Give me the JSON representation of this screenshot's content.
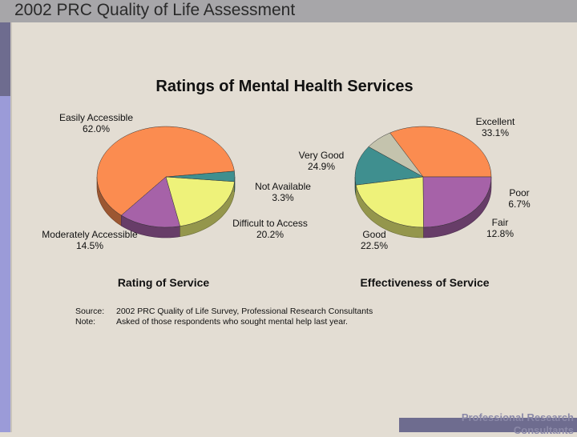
{
  "slide": {
    "header_title": "2002 PRC Quality of Life Assessment",
    "footer_text": "Professional Research Consultants"
  },
  "source": {
    "source_label": "Source:",
    "source_text": "2002 PRC Quality of Life Survey, Professional Research Consultants",
    "note_label": "Note:",
    "note_text": "Asked of those respondents who sought mental help last year."
  },
  "chart_data": [
    {
      "type": "pie",
      "title": "Ratings of Mental Health Services",
      "subtitle": "Rating of Service",
      "slices": [
        {
          "label": "Easily Accessible",
          "value": 62.0,
          "value_text": "62.0%",
          "color": "#fb8c50"
        },
        {
          "label": "Moderately Accessible",
          "value": 14.5,
          "value_text": "14.5%",
          "color": "#a662a8"
        },
        {
          "label": "Difficult to Access",
          "value": 20.2,
          "value_text": "20.2%",
          "color": "#eef27a"
        },
        {
          "label": "Not Available",
          "value": 3.3,
          "value_text": "3.3%",
          "color": "#3f8f8f"
        }
      ]
    },
    {
      "type": "pie",
      "title": "",
      "subtitle": "Effectiveness of Service",
      "slices": [
        {
          "label": "Excellent",
          "value": 33.1,
          "value_text": "33.1%",
          "color": "#fb8c50"
        },
        {
          "label": "Poor",
          "value": 6.7,
          "value_text": "6.7%",
          "color": "#c4c3ad"
        },
        {
          "label": "Fair",
          "value": 12.8,
          "value_text": "12.8%",
          "color": "#3f8f8f"
        },
        {
          "label": "Good",
          "value": 22.5,
          "value_text": "22.5%",
          "color": "#eef27a"
        },
        {
          "label": "Very Good",
          "value": 24.9,
          "value_text": "24.9%",
          "color": "#a662a8"
        }
      ]
    }
  ]
}
